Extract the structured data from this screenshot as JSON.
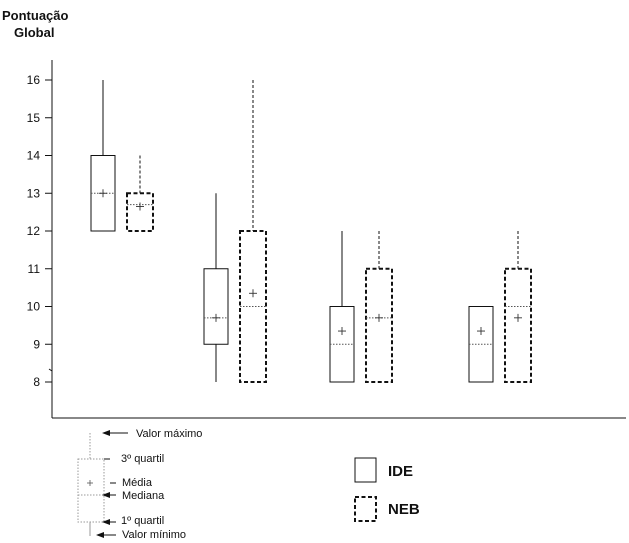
{
  "chart_data": {
    "type": "boxplot",
    "title": "",
    "ylabel": [
      "Pontuação",
      "Global"
    ],
    "xlabel": "",
    "ylim": [
      7.5,
      16.5
    ],
    "yticks": [
      8,
      9,
      10,
      11,
      12,
      13,
      14,
      15,
      16
    ],
    "grid": false,
    "legend": "bottom-right",
    "series": [
      {
        "name": "IDE",
        "line_style": "solid"
      },
      {
        "name": "NEB",
        "line_style": "dashed"
      }
    ],
    "groups": [
      {
        "IDE": {
          "min": 12,
          "q1": 12,
          "median": 13,
          "mean": 13.0,
          "q3": 14,
          "max": 16
        },
        "NEB": {
          "min": 12,
          "q1": 12,
          "median": 12.7,
          "mean": 12.65,
          "q3": 13,
          "max": 14
        }
      },
      {
        "IDE": {
          "min": 8,
          "q1": 9,
          "median": 9.7,
          "mean": 9.7,
          "q3": 11,
          "max": 13
        },
        "NEB": {
          "min": 8,
          "q1": 8,
          "median": 10,
          "mean": 10.35,
          "q3": 12,
          "max": 16
        }
      },
      {
        "IDE": {
          "min": 8,
          "q1": 8,
          "median": 9,
          "mean": 9.35,
          "q3": 10,
          "max": 12
        },
        "NEB": {
          "min": 8,
          "q1": 8,
          "median": 9.7,
          "mean": 9.7,
          "q3": 11,
          "max": 12
        }
      },
      {
        "IDE": {
          "min": 8,
          "q1": 8,
          "median": 9,
          "mean": 9.35,
          "q3": 10,
          "max": 10
        },
        "NEB": {
          "min": 8,
          "q1": 8,
          "median": 10,
          "mean": 9.7,
          "q3": 11,
          "max": 12
        }
      }
    ],
    "key_labels": {
      "max": "Valor máximo",
      "q3": "3º quartil",
      "mean": "Média",
      "median": "Mediana",
      "q1": "1º quartil",
      "min": "Valor mínimo"
    }
  }
}
